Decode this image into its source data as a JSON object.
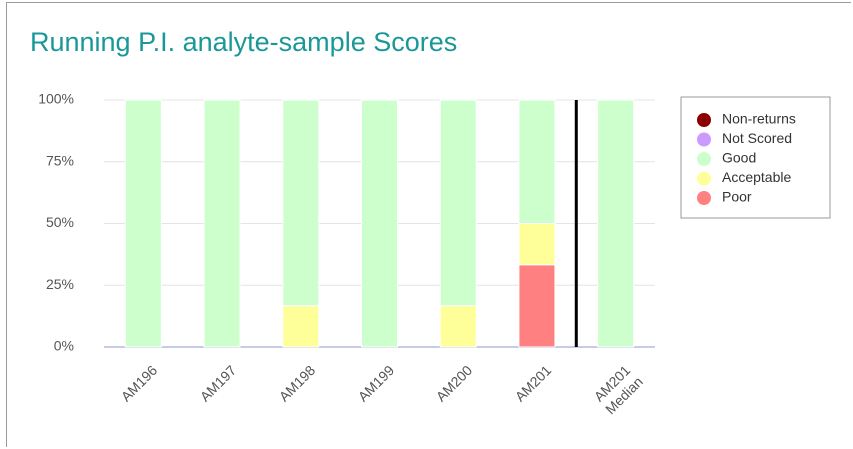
{
  "chart_data": {
    "type": "stacked_bar",
    "title": "Running P.I. analyte-sample Scores",
    "categories": [
      "AM196",
      "AM197",
      "AM198",
      "AM199",
      "AM200",
      "AM201",
      "AM201 Median"
    ],
    "series": [
      {
        "name": "Non-returns",
        "color": "#8b0000",
        "values": [
          0,
          0,
          0,
          0,
          0,
          0,
          0
        ]
      },
      {
        "name": "Not Scored",
        "color": "#cc99ff",
        "values": [
          0,
          0,
          0,
          0,
          0,
          0,
          0
        ]
      },
      {
        "name": "Good",
        "color": "#ccffcc",
        "values": [
          100,
          100,
          83.3,
          100,
          83.3,
          50,
          100
        ]
      },
      {
        "name": "Acceptable",
        "color": "#ffff99",
        "values": [
          0,
          0,
          16.7,
          0,
          16.7,
          16.7,
          0
        ]
      },
      {
        "name": "Poor",
        "color": "#ff8080",
        "values": [
          0,
          0,
          0,
          0,
          0,
          33.3,
          0
        ]
      }
    ],
    "ylim": [
      0,
      100
    ],
    "yticks": [
      {
        "value": 0,
        "label": "0%"
      },
      {
        "value": 25,
        "label": "25%"
      },
      {
        "value": 50,
        "label": "50%"
      },
      {
        "value": 75,
        "label": "75%"
      },
      {
        "value": 100,
        "label": "100%"
      }
    ],
    "grid": true,
    "legend": "right"
  }
}
